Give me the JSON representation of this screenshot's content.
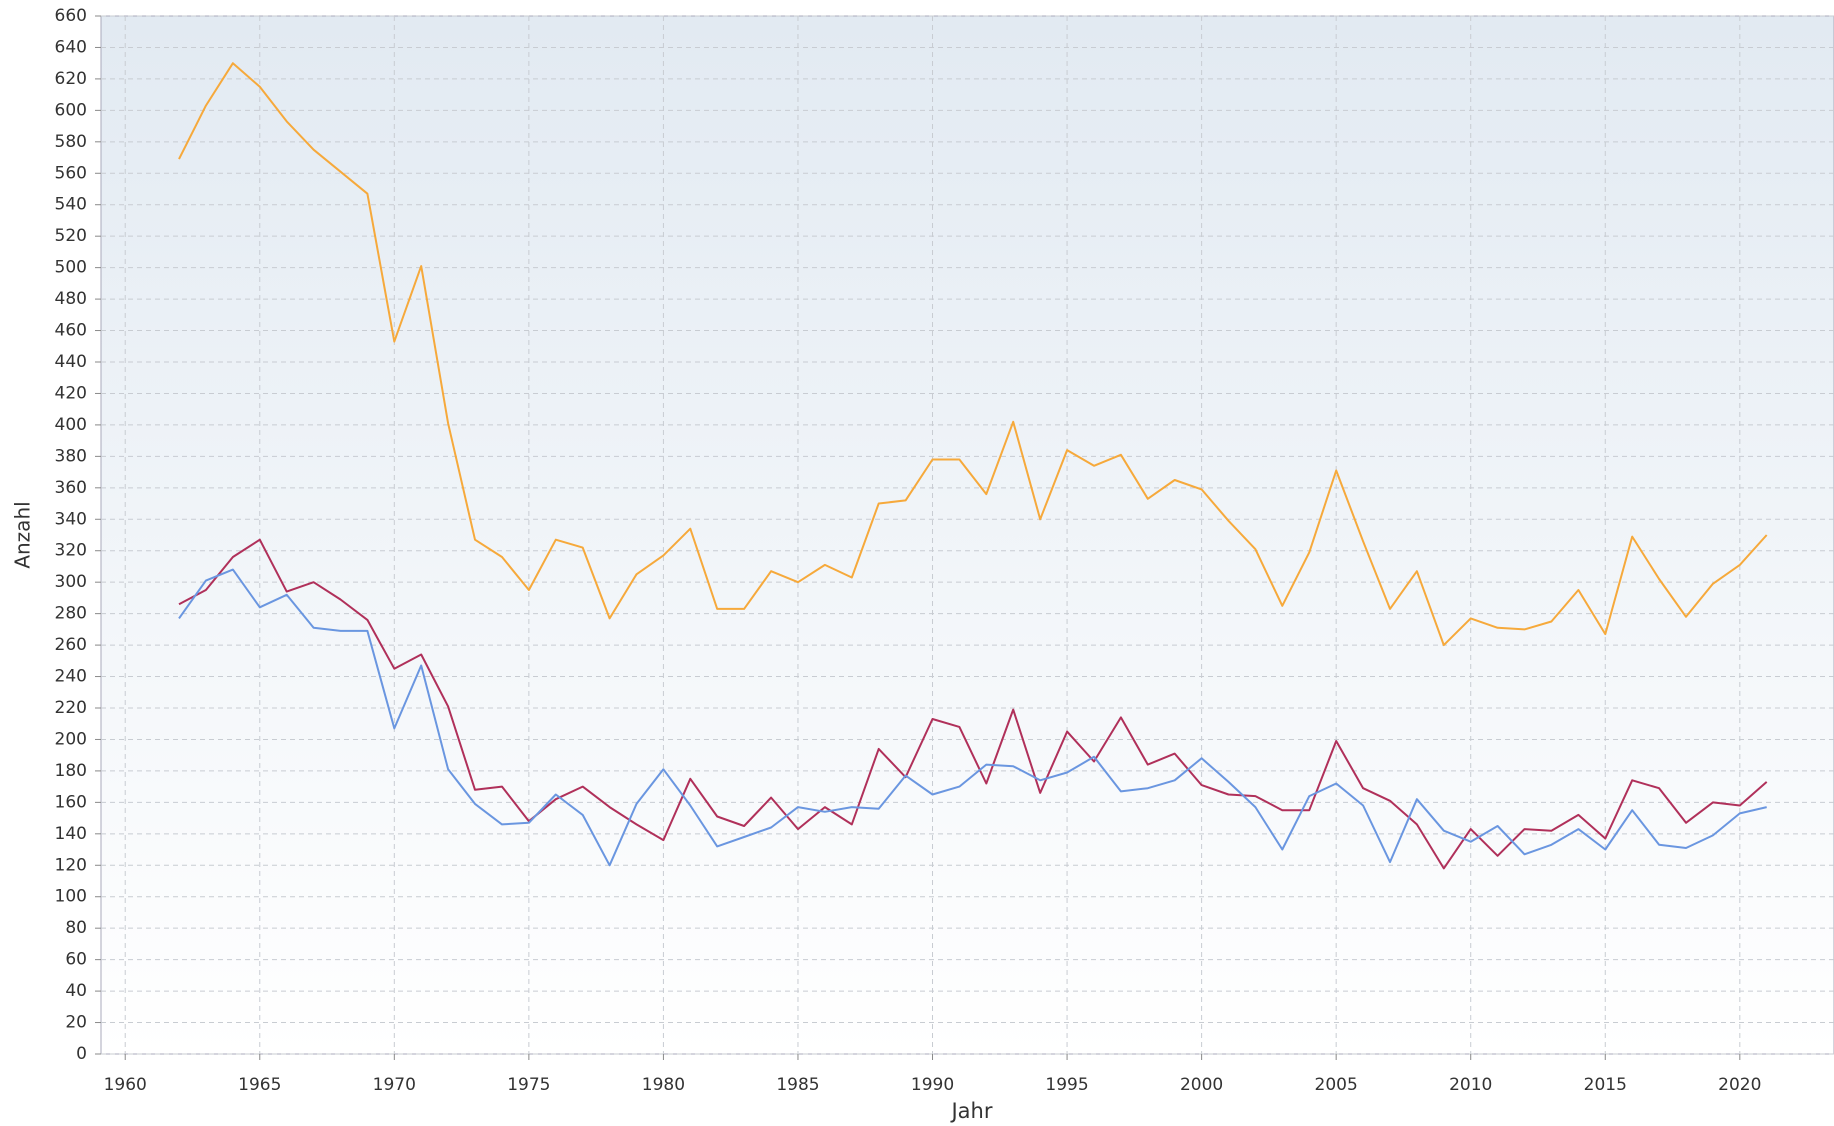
{
  "chart_data": {
    "type": "line",
    "x_label": "Jahr",
    "y_label": "Anzahl",
    "x": [
      1962,
      1963,
      1964,
      1965,
      1966,
      1967,
      1968,
      1969,
      1970,
      1971,
      1972,
      1973,
      1974,
      1975,
      1976,
      1977,
      1978,
      1979,
      1980,
      1981,
      1982,
      1983,
      1984,
      1985,
      1986,
      1987,
      1988,
      1989,
      1990,
      1991,
      1992,
      1993,
      1994,
      1995,
      1996,
      1997,
      1998,
      1999,
      2000,
      2001,
      2002,
      2003,
      2004,
      2005,
      2006,
      2007,
      2008,
      2009,
      2010,
      2011,
      2012,
      2013,
      2014,
      2015,
      2016,
      2017,
      2018,
      2019,
      2020,
      2021
    ],
    "series": [
      {
        "color": "#f6a93b",
        "values": [
          569,
          603,
          630,
          615,
          593,
          575,
          561,
          547,
          453,
          501,
          401,
          327,
          316,
          295,
          327,
          322,
          277,
          305,
          317,
          334,
          283,
          283,
          307,
          300,
          311,
          303,
          350,
          352,
          378,
          378,
          356,
          402,
          340,
          384,
          374,
          381,
          353,
          365,
          359,
          339,
          321,
          285,
          319,
          371,
          326,
          283,
          307,
          260,
          277,
          271,
          270,
          275,
          295,
          267,
          329,
          302,
          278,
          299,
          311,
          330
        ]
      },
      {
        "color": "#b0305a",
        "values": [
          286,
          295,
          316,
          327,
          294,
          300,
          289,
          276,
          245,
          254,
          221,
          168,
          170,
          148,
          162,
          170,
          157,
          146,
          136,
          175,
          151,
          145,
          163,
          143,
          157,
          146,
          194,
          176,
          213,
          208,
          172,
          219,
          166,
          205,
          186,
          214,
          184,
          191,
          171,
          165,
          164,
          155,
          155,
          199,
          169,
          161,
          146,
          118,
          143,
          126,
          143,
          142,
          152,
          137,
          174,
          169,
          147,
          160,
          158,
          173
        ]
      },
      {
        "color": "#6a96e0",
        "values": [
          277,
          301,
          308,
          284,
          292,
          271,
          269,
          269,
          207,
          247,
          181,
          159,
          146,
          147,
          165,
          152,
          120,
          159,
          181,
          158,
          132,
          138,
          144,
          157,
          154,
          157,
          156,
          177,
          165,
          170,
          184,
          183,
          174,
          179,
          189,
          167,
          169,
          174,
          188,
          173,
          157,
          130,
          164,
          172,
          158,
          122,
          162,
          142,
          135,
          145,
          127,
          133,
          143,
          130,
          155,
          133,
          131,
          139,
          153,
          157
        ]
      }
    ],
    "xlim": [
      1959.1,
      2023.5
    ],
    "xticks": [
      1960,
      1965,
      1970,
      1975,
      1980,
      1985,
      1990,
      1995,
      2000,
      2005,
      2010,
      2015,
      2020
    ],
    "ylim": [
      0,
      660
    ],
    "yticks": [
      0,
      20,
      40,
      60,
      80,
      100,
      120,
      140,
      160,
      180,
      200,
      220,
      240,
      260,
      280,
      300,
      320,
      340,
      360,
      380,
      400,
      420,
      440,
      460,
      480,
      500,
      520,
      540,
      560,
      580,
      600,
      620,
      640,
      660
    ],
    "grid": true
  }
}
